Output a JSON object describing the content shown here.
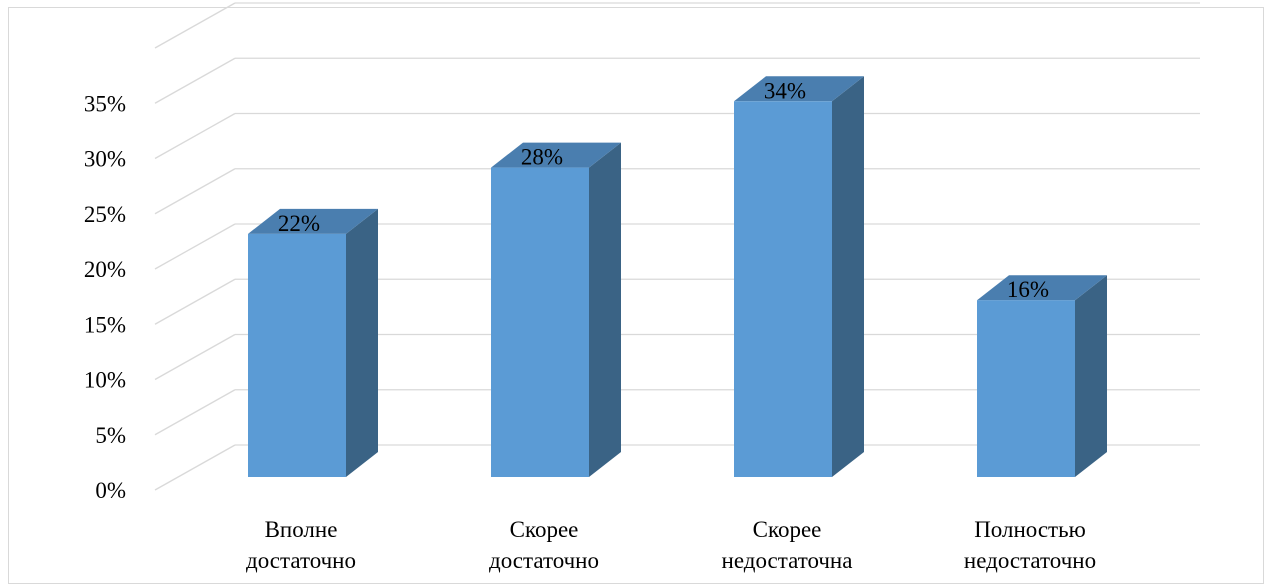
{
  "chart_data": {
    "type": "bar",
    "categories": [
      [
        "Вполне",
        "достаточно"
      ],
      [
        "Скорее",
        "достаточно"
      ],
      [
        "Скорее",
        "недостаточна"
      ],
      [
        "Полностью",
        "недостаточно"
      ]
    ],
    "values": [
      22,
      28,
      34,
      16
    ],
    "data_labels": [
      "22%",
      "28%",
      "34%",
      "16%"
    ],
    "y_ticks": [
      "0%",
      "5%",
      "10%",
      "15%",
      "20%",
      "25%",
      "30%",
      "35%"
    ],
    "ylim": [
      0,
      35
    ],
    "grid": true,
    "three_d": true,
    "colors": {
      "front": "#5b9bd5",
      "side": "#3a6385",
      "top": "#4a7eaf",
      "grid": "#d9d9d9"
    }
  }
}
